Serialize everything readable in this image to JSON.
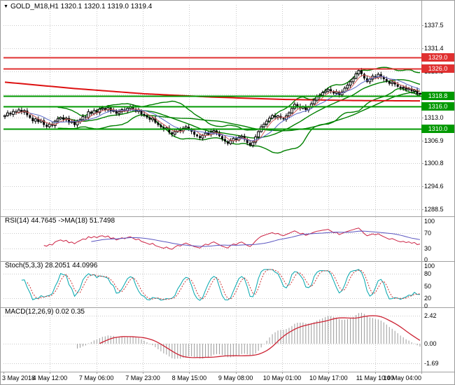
{
  "header": {
    "dropdown_icon": "▼",
    "title": "GOLD_M18,H1 1320.1 1320.1 1319.0 1319.4"
  },
  "colors": {
    "grid": "#c9c9c9",
    "separator": "#a0a0a0",
    "bull": "#ffffff",
    "bear": "#000000",
    "candle_outline": "#000000",
    "bb": "#008000",
    "ma_fast": "#d05858",
    "ma_slow": "#5868c8",
    "red_ma": "#dd1111",
    "level_red": "#e03030",
    "level_green": "#009900",
    "rsi_main": "#cc2244",
    "rsi_ma": "#5a55c0",
    "stoch_main": "#00a6ad",
    "stoch_signal": "#cc3333",
    "macd_hist": "#9a9a9a",
    "macd_signal": "#cc2233"
  },
  "chart_data": {
    "type": "candlestick",
    "symbol": "GOLD_M18",
    "timeframe": "H1",
    "quote": {
      "open": "1320.1",
      "high": "1320.1",
      "low": "1319.0",
      "close": "1319.4"
    },
    "x_labels": [
      "3 May 2018",
      "4 May 12:00",
      "7 May 06:00",
      "7 May 23:00",
      "8 May 15:00",
      "9 May 08:00",
      "10 May 01:00",
      "10 May 17:00",
      "11 May 10:00",
      "14 May 04:00"
    ],
    "main": {
      "ylim": [
        1287.0,
        1343.0
      ],
      "y_ticks": [
        "1337.5",
        "1331.4",
        "1325.3",
        "1319.1",
        "1313.0",
        "1306.9",
        "1300.8",
        "1294.6",
        "1288.5"
      ],
      "y_tick_values": [
        1337.5,
        1331.375,
        1325.25,
        1319.125,
        1313.0,
        1306.875,
        1300.75,
        1294.625,
        1288.5
      ],
      "closes": [
        1313.5,
        1314.2,
        1313.8,
        1314.6,
        1314.3,
        1315.0,
        1314.4,
        1314.8,
        1313.6,
        1312.9,
        1312.0,
        1312.6,
        1311.8,
        1312.2,
        1311.0,
        1310.5,
        1311.2,
        1310.8,
        1312.0,
        1312.6,
        1313.0,
        1312.4,
        1312.8,
        1311.6,
        1311.9,
        1311.0,
        1311.8,
        1312.4,
        1313.2,
        1313.0,
        1314.5,
        1314.0,
        1314.8,
        1314.3,
        1315.2,
        1315.5,
        1315.0,
        1315.6,
        1314.6,
        1314.9,
        1314.0,
        1314.5,
        1315.1,
        1314.7,
        1315.4,
        1315.8,
        1315.2,
        1314.6,
        1314.9,
        1313.9,
        1313.5,
        1313.0,
        1312.4,
        1312.8,
        1311.6,
        1311.0,
        1310.4,
        1309.8,
        1310.2,
        1309.0,
        1308.5,
        1309.2,
        1309.8,
        1309.4,
        1310.1,
        1310.5,
        1309.8,
        1309.2,
        1308.4,
        1308.0,
        1307.5,
        1308.2,
        1308.8,
        1308.4,
        1309.1,
        1309.5,
        1308.8,
        1308.0,
        1307.2,
        1306.6,
        1306.0,
        1306.8,
        1307.4,
        1307.0,
        1307.7,
        1308.0,
        1307.2,
        1306.2,
        1305.5,
        1306.4,
        1307.8,
        1309.2,
        1310.5,
        1311.2,
        1312.0,
        1312.8,
        1313.5,
        1313.0,
        1313.4,
        1312.8,
        1312.5,
        1313.4,
        1314.2,
        1315.4,
        1316.5,
        1316.0,
        1315.4,
        1315.8,
        1315.0,
        1315.8,
        1316.6,
        1317.6,
        1318.5,
        1318.9,
        1319.6,
        1320.0,
        1320.5,
        1320.0,
        1319.4,
        1319.8,
        1319.0,
        1319.8,
        1320.8,
        1321.6,
        1322.5,
        1323.4,
        1324.6,
        1325.5,
        1324.6,
        1323.4,
        1322.5,
        1323.2,
        1324.0,
        1323.6,
        1324.5,
        1323.8,
        1323.2,
        1322.6,
        1322.0,
        1322.4,
        1321.8,
        1321.2,
        1320.8,
        1321.0,
        1320.4,
        1320.7,
        1320.0,
        1320.3,
        1319.2,
        1319.4
      ],
      "levels": [
        {
          "value": 1329.0,
          "label": "1329.0",
          "color": "#e03030"
        },
        {
          "value": 1326.0,
          "label": "1326.0",
          "color": "#e03030"
        },
        {
          "value": 1318.8,
          "label": "1318.8",
          "color": "#009900"
        },
        {
          "value": 1316.0,
          "label": "1316.0",
          "color": "#009900"
        },
        {
          "value": 1310.0,
          "label": "1310.0",
          "color": "#009900"
        }
      ],
      "red_ma_points": [
        [
          0,
          1322.4
        ],
        [
          25,
          1320.7
        ],
        [
          50,
          1319.3
        ],
        [
          75,
          1318.4
        ],
        [
          100,
          1317.8
        ],
        [
          125,
          1317.5
        ],
        [
          149,
          1317.4
        ]
      ],
      "bollinger": {
        "period": 20,
        "deviation": 2
      },
      "ma_fast_period": 5,
      "ma_slow_period": 10,
      "ma_long_period": 50
    },
    "rsi": {
      "label": "RSI(14) 44.7645 ->MA(18) 51.7498",
      "period": 14,
      "ma_period": 18,
      "ylim": [
        0,
        100
      ],
      "scale": [
        "100",
        "70",
        "30",
        "0"
      ],
      "scale_values": [
        100,
        70,
        30,
        0
      ],
      "grid": [
        70,
        30
      ]
    },
    "stoch": {
      "label": "Stoch(5,3,3) 28.2051 44.0996",
      "k": 5,
      "d": 3,
      "slowing": 3,
      "ylim": [
        0,
        100
      ],
      "scale": [
        "100",
        "80",
        "50",
        "20",
        "0"
      ],
      "scale_values": [
        100,
        80,
        50,
        20,
        0
      ],
      "grid": [
        80,
        20
      ]
    },
    "macd": {
      "label": "MACD(12,26,9) 0.02 0.35",
      "fast": 12,
      "slow": 26,
      "signal": 9,
      "ylim": [
        -2.29,
        2.77
      ],
      "scale": [
        "2.42",
        "0.00",
        "-1.69"
      ],
      "scale_values": [
        2.42,
        0,
        -1.69
      ],
      "grid": [
        2.42,
        0,
        -1.69
      ]
    }
  }
}
